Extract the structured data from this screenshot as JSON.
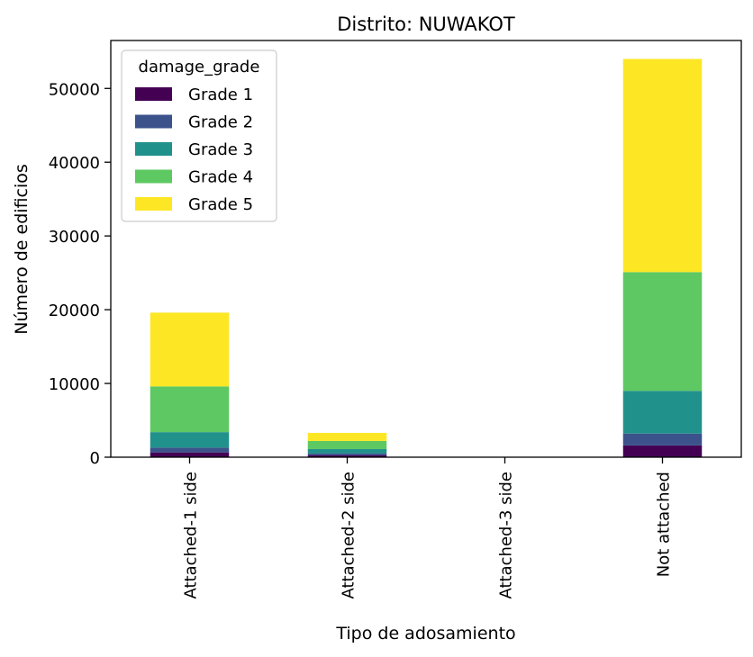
{
  "chart_data": {
    "type": "bar",
    "stacked": true,
    "title": "Distrito: NUWAKOT",
    "xlabel": "Tipo de adosamiento",
    "ylabel": "Número de edificios",
    "categories": [
      "Attached-1 side",
      "Attached-2 side",
      "Attached-3 side",
      "Not attached"
    ],
    "ylim": [
      0,
      56500
    ],
    "yticks": [
      0,
      10000,
      20000,
      30000,
      40000,
      50000
    ],
    "legend": {
      "title": "damage_grade",
      "position": "top-left"
    },
    "series": [
      {
        "name": "Grade 1",
        "color": "#440154",
        "values": [
          650,
          250,
          0,
          1600
        ]
      },
      {
        "name": "Grade 2",
        "color": "#3b528b",
        "values": [
          650,
          250,
          0,
          1600
        ]
      },
      {
        "name": "Grade 3",
        "color": "#21918c",
        "values": [
          2100,
          600,
          0,
          5800
        ]
      },
      {
        "name": "Grade 4",
        "color": "#5ec962",
        "values": [
          6200,
          1100,
          0,
          16100
        ]
      },
      {
        "name": "Grade 5",
        "color": "#fde725",
        "values": [
          10000,
          1100,
          0,
          28900
        ]
      }
    ]
  }
}
